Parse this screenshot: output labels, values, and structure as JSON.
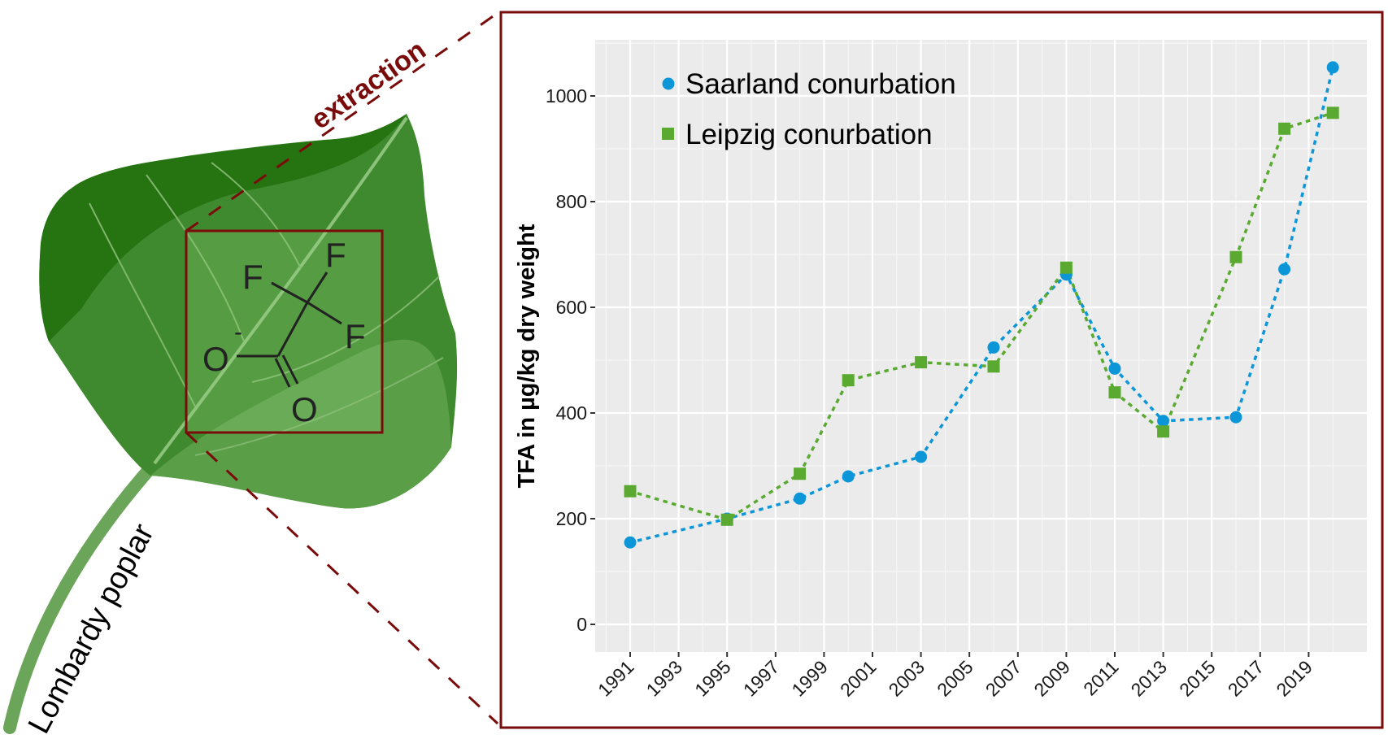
{
  "illustration": {
    "plant_label": "Lombardy poplar",
    "arrow_label": "extraction",
    "molecule": {
      "name": "trifluoroacetate",
      "atoms": [
        "F",
        "F",
        "F",
        "O",
        "O"
      ],
      "charge": "-"
    },
    "colors": {
      "leaf_dark": "#267312",
      "leaf_mid": "#3f8a2e",
      "leaf_light": "#5a9e48",
      "frame": "#7a0b0b"
    }
  },
  "chart_data": {
    "type": "scatter",
    "title": "",
    "xlabel": "",
    "ylabel": "TFA in µg/kg dry weight",
    "xlim": [
      1990,
      2021
    ],
    "ylim": [
      -55,
      1115
    ],
    "grid": true,
    "legend_position": "top-left",
    "x_ticks": [
      1991,
      1993,
      1995,
      1997,
      1999,
      2001,
      2003,
      2005,
      2007,
      2009,
      2011,
      2013,
      2015,
      2017,
      2019
    ],
    "y_ticks": [
      0,
      200,
      400,
      600,
      800,
      1000
    ],
    "series": [
      {
        "name": "Saarland conurbation",
        "marker": "circle",
        "color": "#0c96d8",
        "x": [
          1991,
          1995,
          1998,
          2000,
          2003,
          2006,
          2009,
          2011,
          2013,
          2016,
          2018,
          2020
        ],
        "y": [
          155,
          200,
          238,
          280,
          317,
          524,
          662,
          484,
          385,
          392,
          672,
          1054
        ]
      },
      {
        "name": "Leipzig conurbation",
        "marker": "square",
        "color": "#5aaa32",
        "x": [
          1991,
          1995,
          1998,
          2000,
          2003,
          2006,
          2009,
          2011,
          2013,
          2016,
          2018,
          2020
        ],
        "y": [
          252,
          198,
          285,
          462,
          496,
          488,
          675,
          439,
          365,
          695,
          938,
          968
        ]
      }
    ]
  }
}
